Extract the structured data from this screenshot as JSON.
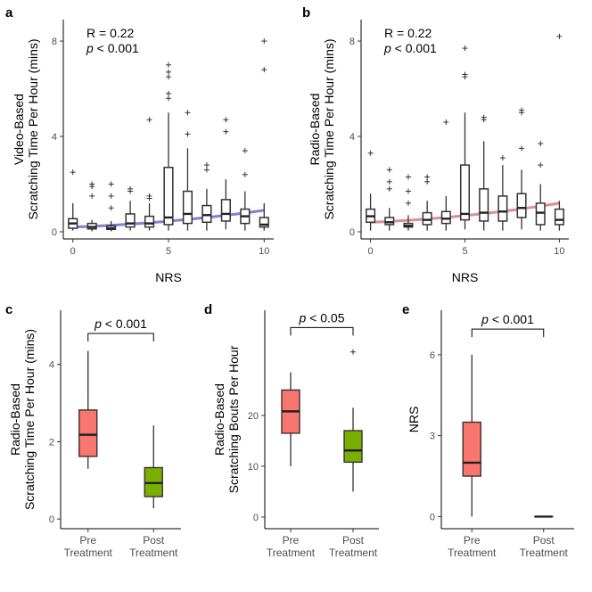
{
  "chart_data": [
    {
      "panel": "a",
      "type": "box",
      "xlabel": "NRS",
      "ylabel": [
        "Video-Based",
        "Scratching Time Per Hour (mins)"
      ],
      "xlim": [
        -0.5,
        10.5
      ],
      "ylim": [
        -0.3,
        8.9
      ],
      "xticks": [
        0,
        5,
        10
      ],
      "yticks": [
        0,
        4,
        8
      ],
      "annotation": {
        "r": "R = 0.22",
        "p_italic": "p",
        "p_rest": " < 0.001"
      },
      "fit_color": "#7373cc",
      "fit": {
        "x0": 0,
        "y0": 0.2,
        "x1": 10,
        "y1": 0.9
      },
      "boxes": [
        {
          "x": 0,
          "whisker_low": 0.05,
          "q1": 0.15,
          "median": 0.35,
          "q3": 0.55,
          "whisker_high": 1.2,
          "outliers": [
            2.5
          ]
        },
        {
          "x": 1,
          "whisker_low": 0.02,
          "q1": 0.12,
          "median": 0.2,
          "q3": 0.35,
          "whisker_high": 0.5,
          "outliers": [
            1.5,
            1.9,
            2.0
          ]
        },
        {
          "x": 2,
          "whisker_low": 0.02,
          "q1": 0.1,
          "median": 0.15,
          "q3": 0.25,
          "whisker_high": 0.45,
          "outliers": [
            1.0,
            1.5,
            2.0
          ]
        },
        {
          "x": 3,
          "whisker_low": 0.05,
          "q1": 0.2,
          "median": 0.35,
          "q3": 0.75,
          "whisker_high": 1.3,
          "outliers": [
            1.7,
            1.8
          ]
        },
        {
          "x": 4,
          "whisker_low": 0.05,
          "q1": 0.2,
          "median": 0.35,
          "q3": 0.65,
          "whisker_high": 1.2,
          "outliers": [
            1.4,
            1.5,
            4.7
          ]
        },
        {
          "x": 5,
          "whisker_low": 0.05,
          "q1": 0.3,
          "median": 0.6,
          "q3": 2.7,
          "whisker_high": 5.0,
          "outliers": [
            5.6,
            5.8,
            6.5,
            6.7,
            7.0
          ]
        },
        {
          "x": 6,
          "whisker_low": 0.05,
          "q1": 0.35,
          "median": 0.75,
          "q3": 1.7,
          "whisker_high": 3.5,
          "outliers": [
            4.1,
            5.0
          ]
        },
        {
          "x": 7,
          "whisker_low": 0.05,
          "q1": 0.4,
          "median": 0.7,
          "q3": 1.1,
          "whisker_high": 1.8,
          "outliers": [
            2.6,
            2.8
          ]
        },
        {
          "x": 8,
          "whisker_low": 0.1,
          "q1": 0.45,
          "median": 0.75,
          "q3": 1.35,
          "whisker_high": 2.2,
          "outliers": [
            4.2,
            4.7
          ]
        },
        {
          "x": 9,
          "whisker_low": 0.05,
          "q1": 0.35,
          "median": 0.65,
          "q3": 0.95,
          "whisker_high": 1.7,
          "outliers": [
            2.4,
            3.4
          ]
        },
        {
          "x": 10,
          "whisker_low": 0.05,
          "q1": 0.2,
          "median": 0.3,
          "q3": 0.6,
          "whisker_high": 1.2,
          "outliers": [
            6.8,
            8.0
          ]
        }
      ]
    },
    {
      "panel": "b",
      "type": "box",
      "xlabel": "NRS",
      "ylabel": [
        "Radio-Based",
        "Scratching Time Per Hour (mins)"
      ],
      "xlim": [
        -0.5,
        10.5
      ],
      "ylim": [
        -0.3,
        8.9
      ],
      "xticks": [
        0,
        5,
        10
      ],
      "yticks": [
        0,
        4,
        8
      ],
      "annotation": {
        "r": "R = 0.22",
        "p_italic": "p",
        "p_rest": " < 0.001"
      },
      "fit_color": "#d98282",
      "fit": {
        "x0": 0,
        "y0": 0.4,
        "x1": 10,
        "y1": 1.2
      },
      "boxes": [
        {
          "x": 0,
          "whisker_low": 0.05,
          "q1": 0.4,
          "median": 0.65,
          "q3": 0.95,
          "whisker_high": 1.6,
          "outliers": [
            3.3
          ]
        },
        {
          "x": 1,
          "whisker_low": 0.05,
          "q1": 0.3,
          "median": 0.4,
          "q3": 0.6,
          "whisker_high": 1.0,
          "outliers": [
            1.8,
            2.1,
            2.6
          ]
        },
        {
          "x": 2,
          "whisker_low": 0.05,
          "q1": 0.2,
          "median": 0.25,
          "q3": 0.35,
          "whisker_high": 0.7,
          "outliers": [
            1.2,
            1.7,
            2.3
          ]
        },
        {
          "x": 3,
          "whisker_low": 0.05,
          "q1": 0.3,
          "median": 0.5,
          "q3": 0.8,
          "whisker_high": 1.3,
          "outliers": [
            2.1,
            2.3
          ]
        },
        {
          "x": 4,
          "whisker_low": 0.05,
          "q1": 0.35,
          "median": 0.55,
          "q3": 0.85,
          "whisker_high": 1.5,
          "outliers": [
            4.6
          ]
        },
        {
          "x": 5,
          "whisker_low": 0.1,
          "q1": 0.5,
          "median": 0.75,
          "q3": 2.8,
          "whisker_high": 5.0,
          "outliers": [
            6.5,
            6.6,
            7.7
          ]
        },
        {
          "x": 6,
          "whisker_low": 0.05,
          "q1": 0.45,
          "median": 0.8,
          "q3": 1.8,
          "whisker_high": 3.8,
          "outliers": [
            4.7,
            4.8
          ]
        },
        {
          "x": 7,
          "whisker_low": 0.05,
          "q1": 0.45,
          "median": 0.85,
          "q3": 1.5,
          "whisker_high": 2.8,
          "outliers": [
            3.1
          ]
        },
        {
          "x": 8,
          "whisker_low": 0.1,
          "q1": 0.6,
          "median": 1.0,
          "q3": 1.6,
          "whisker_high": 2.6,
          "outliers": [
            3.5,
            5.0,
            5.1
          ]
        },
        {
          "x": 9,
          "whisker_low": 0.05,
          "q1": 0.3,
          "median": 0.8,
          "q3": 1.2,
          "whisker_high": 2.0,
          "outliers": [
            2.8,
            3.7
          ]
        },
        {
          "x": 10,
          "whisker_low": 0.05,
          "q1": 0.3,
          "median": 0.5,
          "q3": 0.95,
          "whisker_high": 1.3,
          "outliers": [
            8.2
          ]
        }
      ]
    },
    {
      "panel": "c",
      "type": "box",
      "ylabel": [
        "Radio-Based",
        "Scratching Time Per Hour (mins)"
      ],
      "categories": [
        [
          "Pre",
          "Treatment"
        ],
        [
          "Post",
          "Treatment"
        ]
      ],
      "ylim": [
        -0.25,
        5.4
      ],
      "yticks": [
        0,
        2,
        4
      ],
      "significance": {
        "p_italic": "p",
        "p_rest": " < 0.001",
        "level": 4.8
      },
      "boxes": [
        {
          "cat": 0,
          "color": "#f8766d",
          "whisker_low": 1.3,
          "q1": 1.62,
          "median": 2.18,
          "q3": 2.82,
          "whisker_high": 4.35,
          "outliers": []
        },
        {
          "cat": 1,
          "color": "#7cae00",
          "whisker_low": 0.28,
          "q1": 0.58,
          "median": 0.93,
          "q3": 1.33,
          "whisker_high": 2.42,
          "outliers": []
        }
      ]
    },
    {
      "panel": "d",
      "type": "box",
      "ylabel": [
        "Radio-Based",
        "Scratching Bouts Per Hour"
      ],
      "categories": [
        [
          "Pre",
          "Treatment"
        ],
        [
          "Post",
          "Treatment"
        ]
      ],
      "ylim": [
        -2.3,
        40.7
      ],
      "yticks": [
        0,
        10,
        20
      ],
      "significance": {
        "p_italic": "p",
        "p_rest": " < 0.05",
        "level": 37.3
      },
      "boxes": [
        {
          "cat": 0,
          "color": "#f8766d",
          "whisker_low": 10.0,
          "q1": 16.5,
          "median": 20.8,
          "q3": 25.0,
          "whisker_high": 28.5,
          "outliers": []
        },
        {
          "cat": 1,
          "color": "#7cae00",
          "whisker_low": 5.0,
          "q1": 10.8,
          "median": 13.1,
          "q3": 17.0,
          "whisker_high": 21.5,
          "outliers": [
            32.5
          ]
        }
      ]
    },
    {
      "panel": "e",
      "type": "box",
      "ylabel": [
        "NRS"
      ],
      "categories": [
        [
          "Pre",
          "Treatment"
        ],
        [
          "Post",
          "Treatment"
        ]
      ],
      "ylim": [
        -0.45,
        7.65
      ],
      "yticks": [
        0,
        3,
        6
      ],
      "significance": {
        "p_italic": "p",
        "p_rest": " < 0.001",
        "level": 6.95
      },
      "boxes": [
        {
          "cat": 0,
          "color": "#f8766d",
          "whisker_low": 0.0,
          "q1": 1.5,
          "median": 2.0,
          "q3": 3.5,
          "whisker_high": 6.0,
          "outliers": []
        },
        {
          "cat": 1,
          "color": "#7cae00",
          "whisker_low": 0.0,
          "q1": 0.0,
          "median": 0.0,
          "q3": 0.0,
          "whisker_high": 0.0,
          "outliers": []
        }
      ]
    }
  ]
}
